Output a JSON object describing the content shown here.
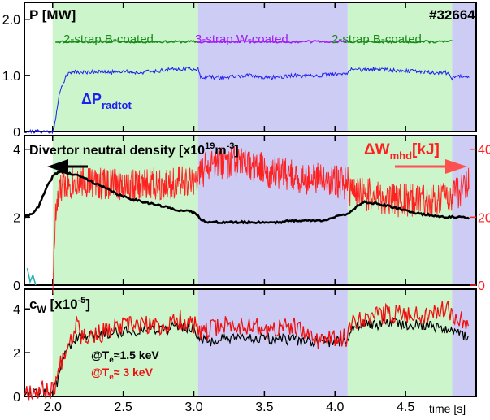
{
  "shot_number": "#32664",
  "time_label": "time [s]",
  "x_ticks": [
    "2.0",
    "2.5",
    "3.0",
    "3.5",
    "4.0",
    "4.5"
  ],
  "phases": [
    {
      "label": "2-strap B-coated",
      "start": 2.0,
      "end": 3.03,
      "color": "#ccf5cc"
    },
    {
      "label": "3-strap W-coated",
      "start": 3.03,
      "end": 4.09,
      "color": "#ccccf5"
    },
    {
      "label": "2-strap B-coated",
      "start": 4.09,
      "end": 4.83,
      "color": "#ccf5cc"
    },
    {
      "label": "",
      "start": 4.83,
      "end": 5.0,
      "color": "#ccccf5"
    }
  ],
  "panel_labels": {
    "p1_title": "P [MW]",
    "p1_ptot_label": "ΔP",
    "p1_ptot_sub": "radtot",
    "p2_left_label": "Divertor neutral density [x10",
    "p2_left_exp": "19",
    "p2_left_unit": "m",
    "p2_left_unit_exp": "-3",
    "p2_left_close": "]",
    "p2_right_label": "ΔW",
    "p2_right_sub": "mhd",
    "p2_right_unit": "[kJ]",
    "p3_title": "c",
    "p3_title_sub": "W",
    "p3_title_unit": " [x10",
    "p3_title_exp": "-5",
    "p3_title_close": "]",
    "p3_leg1_pre": "@T",
    "p3_leg1_sub": "e",
    "p3_leg1_post": "≈1.5 keV",
    "p3_leg2_pre": "@T",
    "p3_leg2_sub": "e",
    "p3_leg2_post": "≈ 3 keV"
  },
  "colors": {
    "power_green": "#1a8a1a",
    "power_purple": "#a020f0",
    "prad_blue": "#2020ee",
    "density_black": "#000000",
    "wmhd_red": "#ff2020",
    "cw_red": "#ee1010",
    "cw_black": "#000000",
    "cyan_trace": "#20b0b0"
  },
  "chart_data": [
    {
      "type": "line",
      "title": "P [MW]",
      "x_range": [
        1.8,
        5.0
      ],
      "ylim": [
        0,
        2.3
      ],
      "y_ticks": [
        "0",
        "1.0",
        "2.0"
      ],
      "y_tick_values": [
        0,
        1.0,
        2.0
      ],
      "series": [
        {
          "name": "2-strap B-coated",
          "x": [
            2.02,
            3.03
          ],
          "y": [
            1.6,
            1.6
          ]
        },
        {
          "name": "3-strap W-coated",
          "x": [
            3.03,
            4.09
          ],
          "y": [
            1.6,
            1.6
          ]
        },
        {
          "name": "2-strap B-coated",
          "x": [
            4.09,
            4.83
          ],
          "y": [
            1.6,
            1.6
          ]
        },
        {
          "name": "ΔP radtot",
          "x": [
            1.8,
            2.0,
            2.02,
            2.05,
            2.08,
            2.1,
            2.15,
            2.2,
            2.3,
            2.4,
            2.5,
            2.6,
            2.7,
            2.8,
            2.9,
            3.0,
            3.03,
            3.05,
            3.1,
            3.2,
            3.3,
            3.4,
            3.5,
            3.6,
            3.7,
            3.8,
            3.9,
            4.0,
            4.09,
            4.1,
            4.2,
            4.3,
            4.4,
            4.5,
            4.6,
            4.7,
            4.8,
            4.83,
            4.9,
            4.95
          ],
          "y": [
            0.0,
            0.0,
            0.2,
            0.7,
            0.9,
            1.0,
            1.08,
            1.05,
            1.07,
            1.05,
            1.08,
            1.05,
            1.07,
            1.1,
            1.12,
            1.12,
            1.1,
            0.98,
            0.97,
            0.96,
            0.98,
            1.0,
            0.96,
            0.97,
            1.0,
            0.98,
            1.0,
            1.02,
            1.02,
            1.12,
            1.1,
            1.12,
            1.1,
            1.08,
            1.07,
            1.05,
            1.05,
            0.95,
            1.0,
            0.98
          ]
        }
      ]
    },
    {
      "type": "line",
      "title": "Divertor neutral density [x10^19 m^-3] / ΔWmhd [kJ]",
      "x_range": [
        1.8,
        5.0
      ],
      "ylim": [
        0,
        4.4
      ],
      "y_ticks": [
        "0",
        "2",
        "4"
      ],
      "y_tick_values": [
        0,
        2,
        4
      ],
      "y2lim": [
        0,
        44
      ],
      "y2_ticks": [
        "0",
        "20",
        "40"
      ],
      "y2_tick_values": [
        0,
        20,
        40
      ],
      "series": [
        {
          "name": "Divertor neutral density",
          "x": [
            1.8,
            1.85,
            1.9,
            1.95,
            2.0,
            2.03,
            2.06,
            2.1,
            2.15,
            2.2,
            2.3,
            2.4,
            2.5,
            2.6,
            2.7,
            2.8,
            2.9,
            3.0,
            3.05,
            3.1,
            3.2,
            3.3,
            3.4,
            3.5,
            3.6,
            3.7,
            3.8,
            3.9,
            4.0,
            4.09,
            4.15,
            4.2,
            4.3,
            4.4,
            4.5,
            4.6,
            4.7,
            4.8,
            4.9,
            4.95
          ],
          "y": [
            2.0,
            2.1,
            2.3,
            2.8,
            3.2,
            3.3,
            3.35,
            3.3,
            3.25,
            3.2,
            3.0,
            2.8,
            2.6,
            2.5,
            2.4,
            2.3,
            2.2,
            2.15,
            1.95,
            1.85,
            1.85,
            1.85,
            1.85,
            1.85,
            1.85,
            1.9,
            1.9,
            1.9,
            2.0,
            2.1,
            2.3,
            2.45,
            2.4,
            2.3,
            2.2,
            2.1,
            2.05,
            2.0,
            2.0,
            1.95
          ]
        },
        {
          "name": "ΔWmhd [kJ]",
          "x": [
            2.0,
            2.02,
            2.05,
            2.1,
            2.2,
            2.3,
            2.4,
            2.5,
            2.6,
            2.7,
            2.8,
            2.9,
            3.0,
            3.05,
            3.1,
            3.2,
            3.3,
            3.4,
            3.5,
            3.6,
            3.7,
            3.8,
            3.9,
            4.0,
            4.09,
            4.1,
            4.2,
            4.3,
            4.4,
            4.5,
            4.6,
            4.7,
            4.8,
            4.9,
            4.95
          ],
          "y": [
            0,
            20,
            28,
            30,
            31,
            30,
            30,
            30,
            29,
            30,
            30,
            30,
            30,
            33,
            35,
            36,
            36,
            35,
            34,
            33,
            32,
            31,
            31,
            31,
            30,
            28,
            27,
            26,
            25,
            25,
            25,
            25,
            26,
            28,
            30
          ]
        },
        {
          "name": "",
          "x": [
            1.82,
            1.84,
            1.86,
            1.88
          ],
          "y": [
            0.5,
            0.1,
            0.3,
            0.0
          ]
        }
      ]
    },
    {
      "type": "line",
      "title": "cW [x10^-5]",
      "x_range": [
        1.8,
        5.0
      ],
      "ylim": [
        0,
        4.9
      ],
      "y_ticks": [
        "0",
        "2",
        "4"
      ],
      "y_tick_values": [
        0,
        2,
        4
      ],
      "series": [
        {
          "name": "@Te≈1.5 keV",
          "x": [
            1.8,
            1.9,
            2.0,
            2.03,
            2.06,
            2.1,
            2.15,
            2.2,
            2.3,
            2.4,
            2.5,
            2.6,
            2.7,
            2.8,
            2.9,
            3.0,
            3.05,
            3.1,
            3.2,
            3.3,
            3.4,
            3.5,
            3.6,
            3.7,
            3.8,
            3.9,
            4.0,
            4.09,
            4.12,
            4.2,
            4.3,
            4.4,
            4.5,
            4.6,
            4.7,
            4.8,
            4.9,
            4.95
          ],
          "y": [
            0.2,
            0.2,
            0.2,
            0.6,
            1.4,
            2.2,
            2.6,
            2.7,
            2.8,
            2.9,
            3.0,
            3.0,
            3.1,
            3.1,
            3.2,
            3.1,
            2.6,
            2.5,
            2.6,
            2.6,
            2.7,
            2.6,
            2.6,
            2.6,
            2.5,
            2.5,
            2.5,
            2.6,
            3.2,
            3.3,
            3.3,
            3.4,
            3.3,
            3.3,
            3.2,
            3.1,
            2.8,
            2.7
          ]
        },
        {
          "name": "@Te≈ 3 keV",
          "x": [
            1.8,
            1.9,
            2.0,
            2.03,
            2.06,
            2.1,
            2.15,
            2.18,
            2.2,
            2.3,
            2.4,
            2.5,
            2.6,
            2.7,
            2.8,
            2.9,
            3.0,
            3.05,
            3.1,
            3.2,
            3.3,
            3.4,
            3.5,
            3.6,
            3.7,
            3.8,
            3.9,
            4.0,
            4.09,
            4.12,
            4.2,
            4.3,
            4.4,
            4.5,
            4.6,
            4.7,
            4.8,
            4.9,
            4.95
          ],
          "y": [
            0.3,
            0.3,
            0.3,
            0.8,
            1.6,
            2.4,
            2.9,
            3.9,
            2.8,
            2.8,
            3.0,
            3.2,
            3.3,
            3.2,
            3.2,
            3.5,
            3.3,
            2.8,
            3.0,
            3.3,
            3.2,
            3.3,
            3.0,
            3.1,
            3.2,
            2.8,
            2.6,
            2.6,
            2.7,
            3.5,
            3.6,
            3.7,
            3.8,
            3.8,
            3.7,
            3.9,
            4.0,
            3.5,
            3.3
          ]
        }
      ]
    }
  ]
}
